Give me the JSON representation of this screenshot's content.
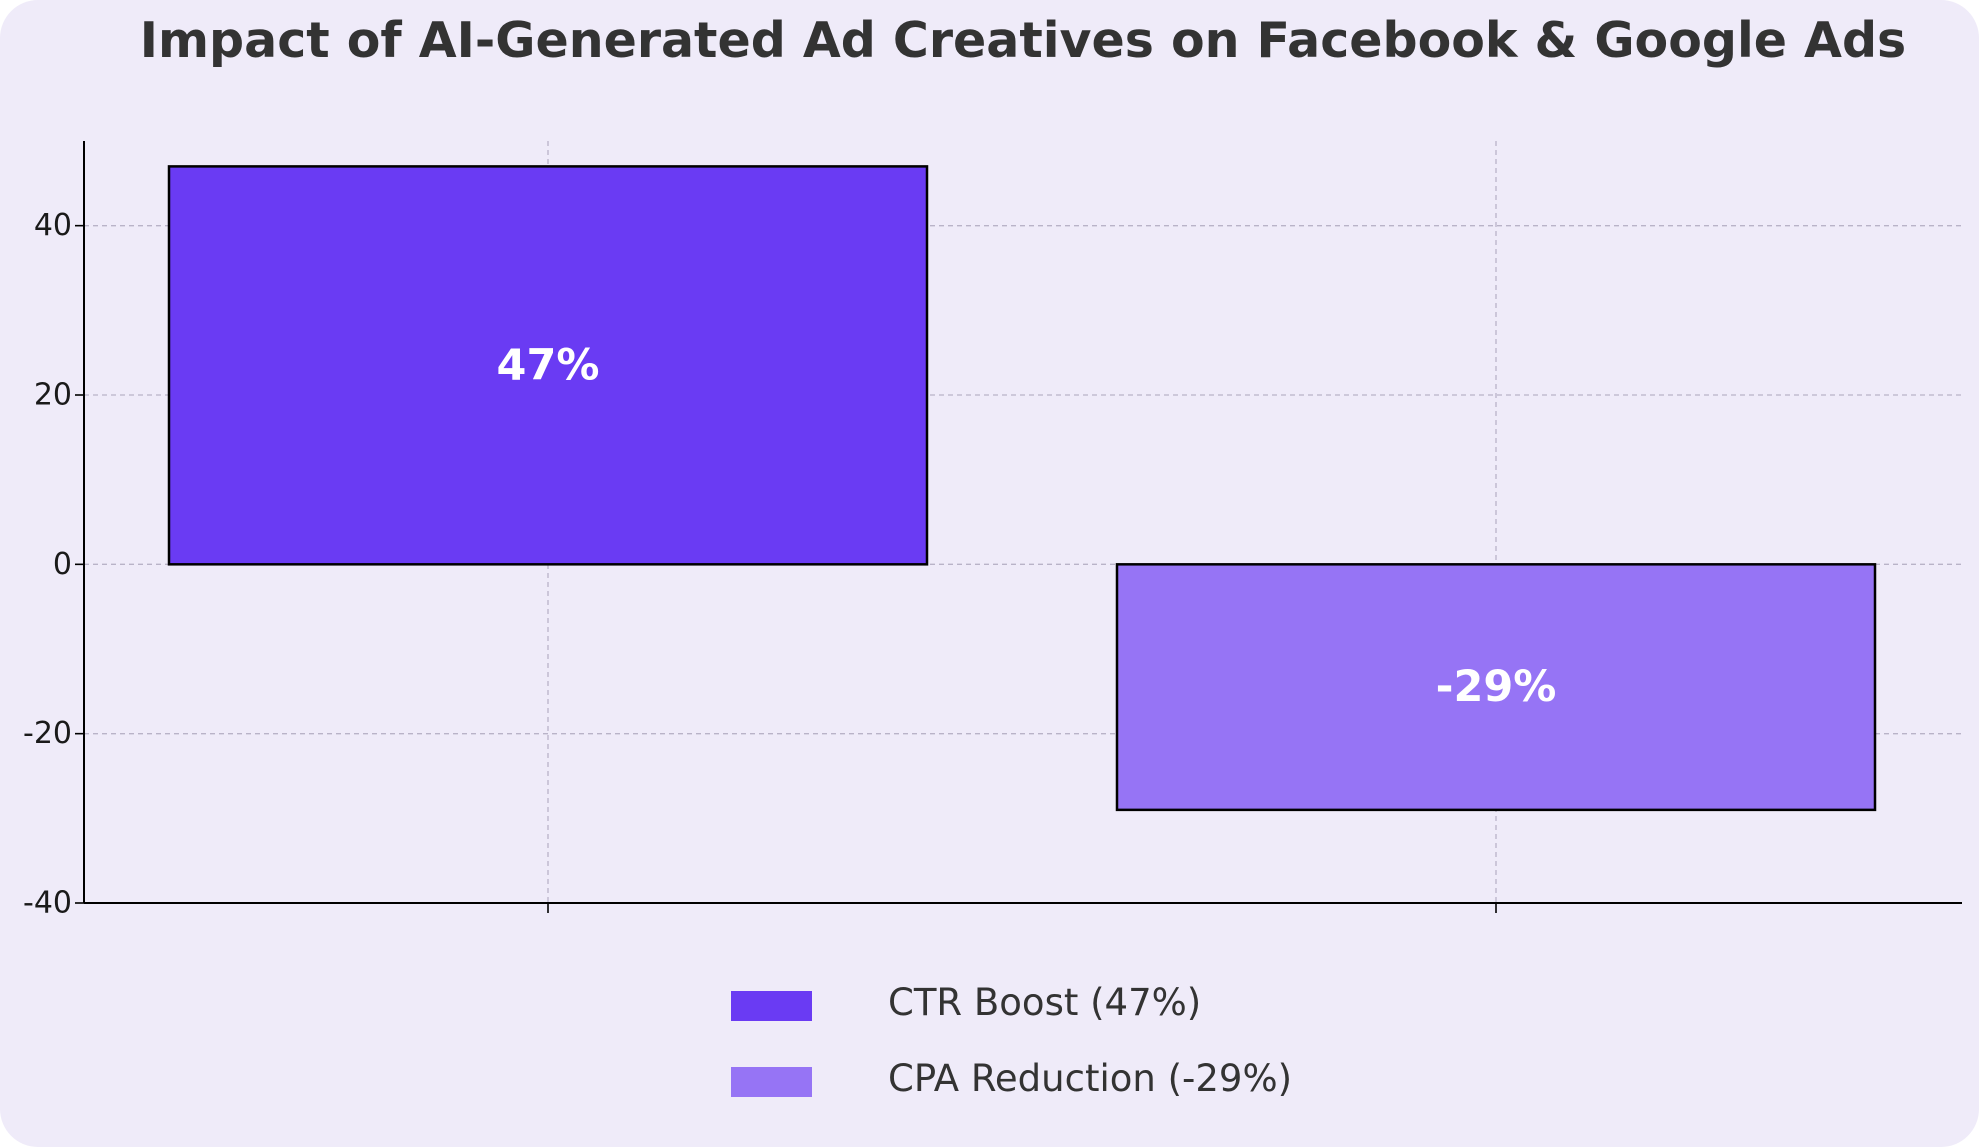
{
  "chart_data": {
    "type": "bar",
    "title": "Impact of AI-Generated Ad Creatives on Facebook & Google Ads",
    "categories": [
      "",
      ""
    ],
    "values": [
      47,
      -29
    ],
    "data_labels": [
      "47%",
      "-29%"
    ],
    "colors": [
      "#6a3bf3",
      "#9674f5"
    ],
    "edge_color": "#000000",
    "ylim": [
      -40,
      50
    ],
    "yticks": [
      -40,
      -20,
      0,
      20,
      40
    ],
    "grid": true,
    "xlabel": "",
    "ylabel": "",
    "legend": {
      "placement": "bottom-center",
      "entries": [
        {
          "label": "CTR Boost (47%)",
          "color": "#6a3bf3"
        },
        {
          "label": "CPA Reduction (-29%)",
          "color": "#9674f5"
        }
      ]
    }
  }
}
